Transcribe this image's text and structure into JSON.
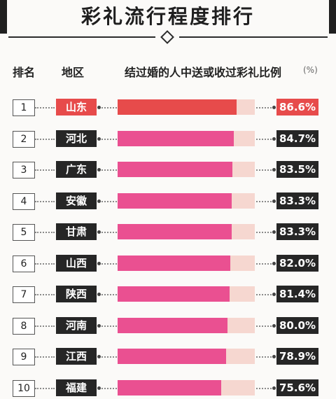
{
  "title": "彩礼流行程度排行",
  "header": {
    "rank": "排名",
    "region": "地区",
    "ratio": "结过婚的人中送或收过彩礼比例",
    "unit": "(%)"
  },
  "colors": {
    "highlight": "#e74b4b",
    "bar": "#ea5091",
    "track": "#f6d7d0",
    "pill": "#262626"
  },
  "chart_data": {
    "type": "bar",
    "orientation": "horizontal",
    "title": "彩礼流行程度排行",
    "xlabel": "结过婚的人中送或收过彩礼比例",
    "unit": "%",
    "xlim": [
      0,
      100
    ],
    "rows": [
      {
        "rank": "1",
        "region": "山东",
        "value": 86.6,
        "label": "86.6%"
      },
      {
        "rank": "2",
        "region": "河北",
        "value": 84.7,
        "label": "84.7%"
      },
      {
        "rank": "3",
        "region": "广东",
        "value": 83.5,
        "label": "83.5%"
      },
      {
        "rank": "4",
        "region": "安徽",
        "value": 83.3,
        "label": "83.3%"
      },
      {
        "rank": "5",
        "region": "甘肃",
        "value": 83.3,
        "label": "83.3%"
      },
      {
        "rank": "6",
        "region": "山西",
        "value": 82.0,
        "label": "82.0%"
      },
      {
        "rank": "7",
        "region": "陕西",
        "value": 81.4,
        "label": "81.4%"
      },
      {
        "rank": "8",
        "region": "河南",
        "value": 80.0,
        "label": "80.0%"
      },
      {
        "rank": "9",
        "region": "江西",
        "value": 78.9,
        "label": "78.9%"
      },
      {
        "rank": "10",
        "region": "福建",
        "value": 75.6,
        "label": "75.6%"
      }
    ]
  }
}
